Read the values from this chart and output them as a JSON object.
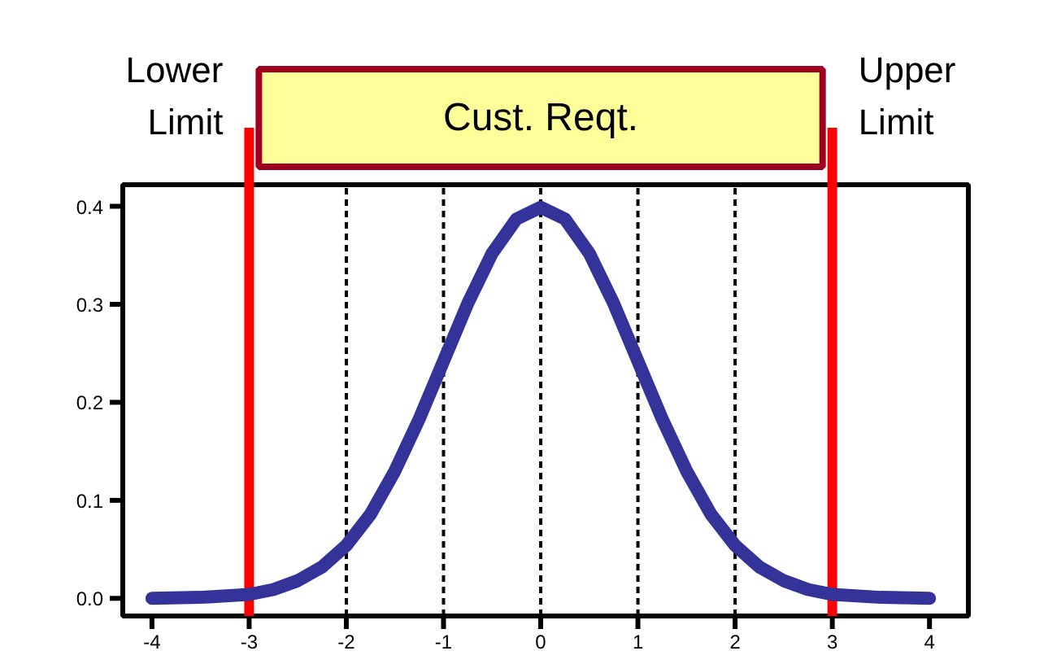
{
  "chart_data": {
    "type": "line",
    "x": [
      -4,
      -3.5,
      -3,
      -2.75,
      -2.5,
      -2.25,
      -2,
      -1.75,
      -1.5,
      -1.25,
      -1,
      -0.75,
      -0.5,
      -0.25,
      0,
      0.25,
      0.5,
      0.75,
      1,
      1.25,
      1.5,
      1.75,
      2,
      2.25,
      2.5,
      2.75,
      3,
      3.5,
      4
    ],
    "series": [
      {
        "color": "#333399",
        "values": [
          0.0,
          0.001,
          0.004,
          0.009,
          0.018,
          0.032,
          0.054,
          0.086,
          0.13,
          0.183,
          0.242,
          0.301,
          0.352,
          0.387,
          0.399,
          0.387,
          0.352,
          0.301,
          0.242,
          0.183,
          0.13,
          0.086,
          0.054,
          0.032,
          0.018,
          0.009,
          0.004,
          0.001,
          0.0
        ]
      }
    ],
    "xlim": [
      -4.3,
      4.4
    ],
    "ylim": [
      -0.018,
      0.422
    ],
    "xticks": [
      -4,
      -3,
      -2,
      -1,
      0,
      1,
      2,
      3,
      4
    ],
    "yticks": [
      {
        "value": 0,
        "label": "0.0"
      },
      {
        "value": 0.1,
        "label": "0.1"
      },
      {
        "value": 0.2,
        "label": "0.2"
      },
      {
        "value": 0.3,
        "label": "0.3"
      },
      {
        "value": 0.4,
        "label": "0.4"
      }
    ],
    "grid": false,
    "marker": "none",
    "line_style": "solid",
    "ref_lines": [
      {
        "axis": "x",
        "value": -2,
        "color": "#000000",
        "line_style": "dashed"
      },
      {
        "axis": "x",
        "value": -1,
        "color": "#000000",
        "line_style": "dashed"
      },
      {
        "axis": "x",
        "value": 0,
        "color": "#000000",
        "line_style": "dashed"
      },
      {
        "axis": "x",
        "value": 1,
        "color": "#000000",
        "line_style": "dashed"
      },
      {
        "axis": "x",
        "value": 2,
        "color": "#000000",
        "line_style": "dashed"
      },
      {
        "axis": "x",
        "value": -3,
        "color": "#ff0000",
        "line_style": "solid",
        "label": "Lower Limit"
      },
      {
        "axis": "x",
        "value": 3,
        "color": "#ff0000",
        "line_style": "solid",
        "label": "Upper Limit"
      }
    ],
    "annotations": [
      "Cust. Reqt."
    ]
  }
}
